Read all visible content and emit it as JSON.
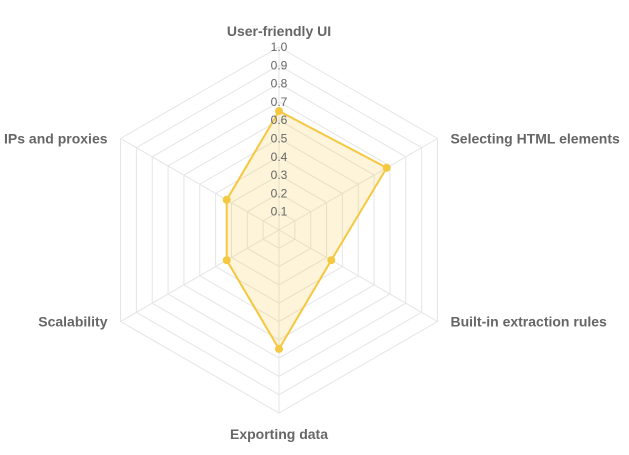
{
  "chart_data": {
    "type": "radar",
    "categories": [
      "User-friendly UI",
      "Selecting HTML elements",
      "Built-in extraction rules",
      "Exporting data",
      "Scalability",
      "IPs and proxies"
    ],
    "series": [
      {
        "values": [
          0.65,
          0.68,
          0.33,
          0.65,
          0.33,
          0.33
        ],
        "color": "#f5c842",
        "fill": "rgba(245, 200, 66, 0.2)"
      }
    ],
    "r_ticks": [
      "0.1",
      "0.2",
      "0.3",
      "0.4",
      "0.5",
      "0.6",
      "0.7",
      "0.8",
      "0.9",
      "1.0"
    ],
    "rlim": [
      0,
      1.0
    ],
    "grid": true,
    "grid_color": "#e5e5e5",
    "legend": "none"
  }
}
